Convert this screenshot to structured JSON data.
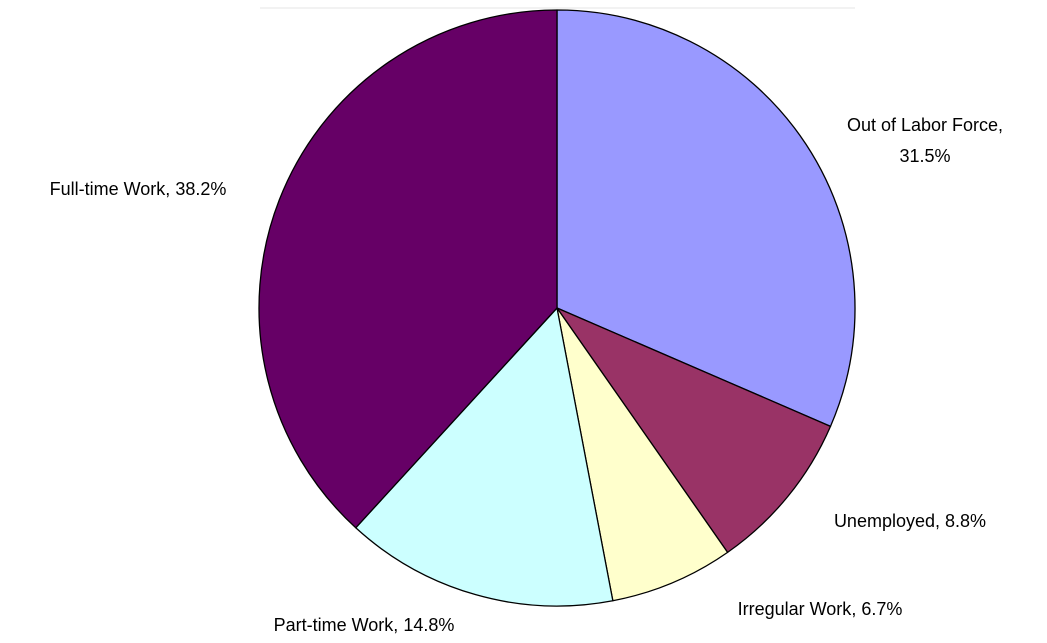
{
  "chart_data": {
    "type": "pie",
    "categories": [
      "Out of Labor Force",
      "Unemployed",
      "Irregular Work",
      "Part-time Work",
      "Full-time Work"
    ],
    "values": [
      31.5,
      8.8,
      6.7,
      14.8,
      38.2
    ],
    "value_labels": [
      "31.5%",
      "8.8%",
      "6.7%",
      "14.8%",
      "38.2%"
    ],
    "colors": [
      "#9999ff",
      "#993366",
      "#ffffcc",
      "#ccffff",
      "#660066"
    ]
  }
}
